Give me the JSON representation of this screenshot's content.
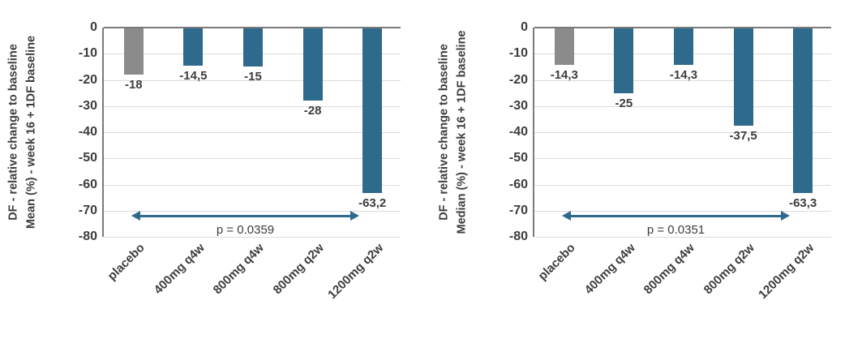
{
  "colors": {
    "teal": "#2e6a8c",
    "gray": "#8b8b8b",
    "gridline": "#dcdcdc",
    "axis_line": "#7a7a7a",
    "text": "#3d3d3d",
    "arrow": "#2e6a8c"
  },
  "chart_data": [
    {
      "type": "bar",
      "title": "",
      "y_axis_title_lines": [
        "DF - relative change to baseline",
        "Mean (%) - week 16 + 1DF baseline"
      ],
      "categories": [
        "placebo",
        "400mg q4w",
        "800mg q4w",
        "800mg q2w",
        "1200mg q2w"
      ],
      "values": [
        -18,
        -14.5,
        -15,
        -28,
        -63.2
      ],
      "value_labels": [
        "-18",
        "-14,5",
        "-15",
        "-28",
        "-63,2"
      ],
      "bar_colors": [
        "gray",
        "teal",
        "teal",
        "teal",
        "teal"
      ],
      "ylim": [
        -80,
        0
      ],
      "yticks": [
        0,
        -10,
        -20,
        -30,
        -40,
        -50,
        -60,
        -70,
        -80
      ],
      "grid": true,
      "legend": false,
      "annotation": {
        "label": "p = 0.0359",
        "from_category": "placebo",
        "to_category": "1200mg q2w",
        "y_value": -72
      }
    },
    {
      "type": "bar",
      "title": "",
      "y_axis_title_lines": [
        "DF - relative change to baseline",
        "Median (%) - week 16 + 1DF baseline"
      ],
      "categories": [
        "placebo",
        "400mg q4w",
        "800mg q4w",
        "800mg q2w",
        "1200mg q2w"
      ],
      "values": [
        -14.3,
        -25,
        -14.3,
        -37.5,
        -63.3
      ],
      "value_labels": [
        "-14,3",
        "-25",
        "-14,3",
        "-37,5",
        "-63,3"
      ],
      "bar_colors": [
        "gray",
        "teal",
        "teal",
        "teal",
        "teal"
      ],
      "ylim": [
        -80,
        0
      ],
      "yticks": [
        0,
        -10,
        -20,
        -30,
        -40,
        -50,
        -60,
        -70,
        -80
      ],
      "grid": true,
      "legend": false,
      "annotation": {
        "label": "p = 0.0351",
        "from_category": "placebo",
        "to_category": "1200mg q2w",
        "y_value": -72
      }
    }
  ]
}
